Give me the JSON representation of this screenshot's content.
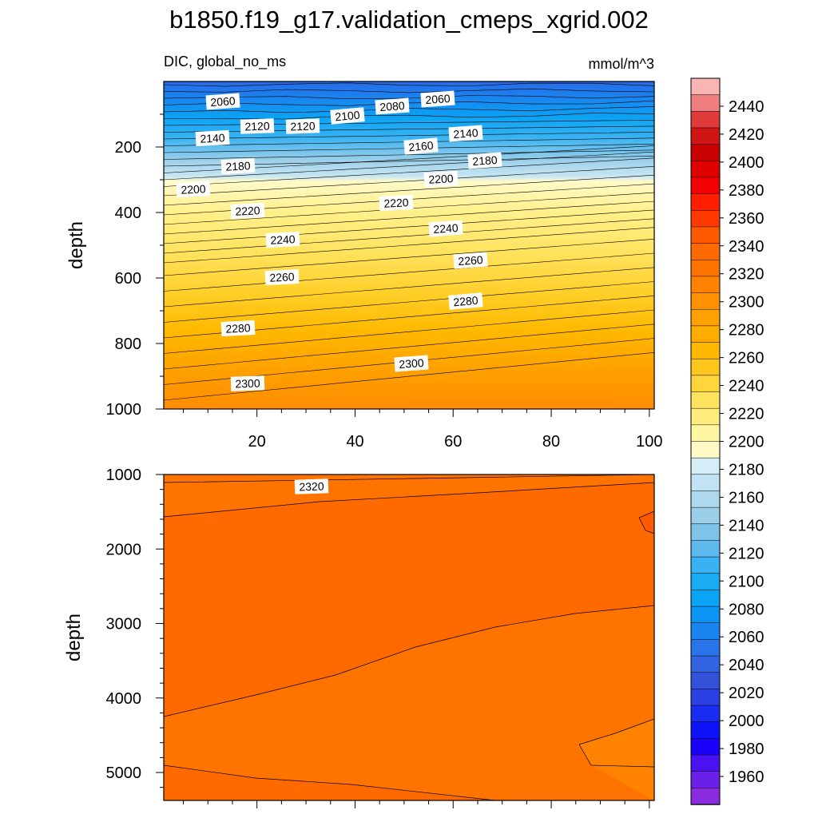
{
  "title": "b1850.f19_g17.validation_cmeps_xgrid.002",
  "chart_data": {
    "type": "contour",
    "variable": "DIC, global_no_ms",
    "units": "mmol/m^3",
    "colorbar": {
      "labels": [
        "2440",
        "2420",
        "2400",
        "2380",
        "2360",
        "2340",
        "2320",
        "2300",
        "2280",
        "2260",
        "2240",
        "2220",
        "2200",
        "2180",
        "2160",
        "2140",
        "2120",
        "2100",
        "2080",
        "2060",
        "2040",
        "2020",
        "2000",
        "1980",
        "1960"
      ],
      "colors": [
        "#f9b4b4",
        "#ef7f7f",
        "#df3b3b",
        "#d01515",
        "#c80000",
        "#e00000",
        "#f30000",
        "#ff1f00",
        "#ff3900",
        "#ff5a00",
        "#ff6a00",
        "#ff7400",
        "#ff8300",
        "#ff9100",
        "#ffa100",
        "#ffac00",
        "#ffb900",
        "#ffc71e",
        "#ffd53e",
        "#ffe35f",
        "#ffee7e",
        "#fff6a1",
        "#fffac8",
        "#d6ecf6",
        "#c2e3f4",
        "#add8ee",
        "#9bcfe9",
        "#7ec4e9",
        "#60b9ec",
        "#38b2f2",
        "#1aacf3",
        "#0ba3f4",
        "#0a94f3",
        "#1a84ef",
        "#2a74ea",
        "#3264e2",
        "#3352d8",
        "#2b3fe2",
        "#1a2cf0",
        "#0e12f8",
        "#1a00f8",
        "#4a12f0",
        "#6a20e6",
        "#8a2be0"
      ]
    },
    "panels": [
      {
        "name": "upper",
        "ylabel": "depth",
        "y_range": [
          0,
          1000
        ],
        "y_ticks": [
          "200",
          "400",
          "600",
          "800",
          "1000"
        ],
        "x_range": [
          1,
          101
        ],
        "x_ticks": [
          "20",
          "40",
          "60",
          "80",
          "100"
        ],
        "contour_labels": [
          "2060",
          "2060",
          "2080",
          "2100",
          "2120",
          "2120",
          "2140",
          "2140",
          "2160",
          "2180",
          "2180",
          "2200",
          "2200",
          "2220",
          "2220",
          "2240",
          "2240",
          "2260",
          "2260",
          "2280",
          "2280",
          "2300",
          "2300"
        ]
      },
      {
        "name": "lower",
        "ylabel": "depth",
        "y_range": [
          1000,
          5375
        ],
        "y_ticks": [
          "1000",
          "2000",
          "3000",
          "4000",
          "5000"
        ],
        "x_range": [
          1,
          101
        ],
        "contour_labels": [
          "2320"
        ]
      }
    ]
  }
}
